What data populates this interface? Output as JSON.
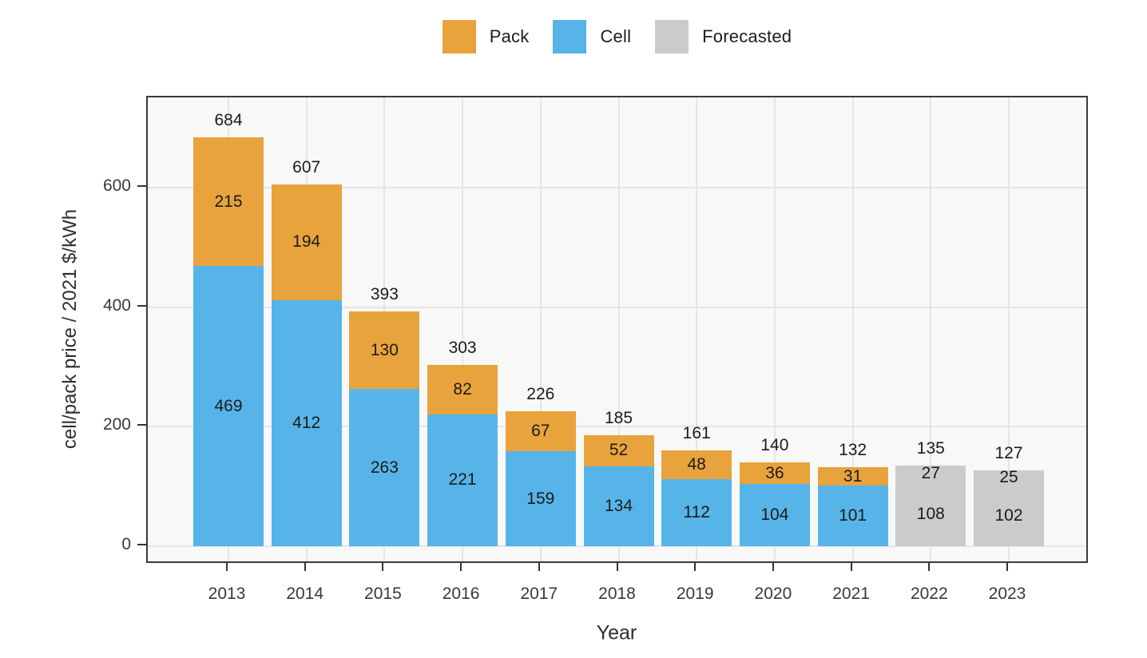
{
  "chart_data": {
    "type": "bar",
    "stacked": true,
    "title": "",
    "xlabel": "Year",
    "ylabel": "cell/pack price / 2021 $/kWh",
    "categories": [
      "2013",
      "2014",
      "2015",
      "2016",
      "2017",
      "2018",
      "2019",
      "2020",
      "2021",
      "2022",
      "2023"
    ],
    "series": [
      {
        "name": "Cell",
        "values": [
          469,
          412,
          263,
          221,
          159,
          134,
          112,
          104,
          101,
          108,
          102
        ]
      },
      {
        "name": "Pack",
        "values": [
          215,
          194,
          130,
          82,
          67,
          52,
          48,
          36,
          31,
          27,
          25
        ]
      }
    ],
    "totals": [
      684,
      607,
      393,
      303,
      226,
      185,
      161,
      140,
      132,
      135,
      127
    ],
    "forecast_categories": [
      "2022",
      "2023"
    ],
    "y_ticks": [
      0,
      200,
      400,
      600
    ],
    "ylim": [
      0,
      750
    ],
    "grid": true,
    "legend_position": "top",
    "legend": [
      {
        "label": "Pack",
        "color": "#e8a33c"
      },
      {
        "label": "Cell",
        "color": "#56b4e9"
      },
      {
        "label": "Forecasted",
        "color": "#cbcbcb"
      }
    ],
    "colors": {
      "pack": "#e8a33c",
      "cell": "#56b4e9",
      "forecast": "#cbcbcb",
      "panel_background": "#f8f8f8",
      "gridline": "#e5e5e5",
      "panel_border": "#3a3a3a"
    }
  }
}
